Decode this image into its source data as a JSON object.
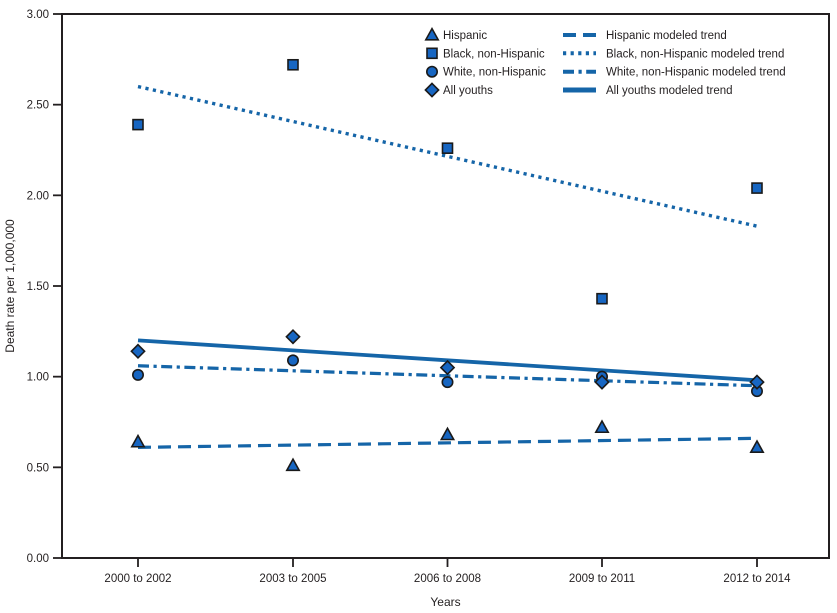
{
  "chart_data": {
    "type": "scatter",
    "title": "",
    "xlabel": "Years",
    "ylabel": "Death rate per 1,000,000",
    "ylim": [
      0.0,
      3.0
    ],
    "ytick_step": 0.5,
    "ytick_labels": [
      "0.00",
      "0.50",
      "1.00",
      "1.50",
      "2.00",
      "2.50",
      "3.00"
    ],
    "categories": [
      "2000 to 2002",
      "2003 to 2005",
      "2006 to 2008",
      "2009 to 2011",
      "2012 to 2014"
    ],
    "grid": false,
    "legend_position": "top-right-inside",
    "series": [
      {
        "name": "Hispanic",
        "marker": "triangle",
        "values": [
          0.64,
          0.51,
          0.68,
          0.72,
          0.61
        ]
      },
      {
        "name": "Black, non-Hispanic",
        "marker": "square",
        "values": [
          2.39,
          2.72,
          2.26,
          1.43,
          2.04
        ]
      },
      {
        "name": "White, non-Hispanic",
        "marker": "circle",
        "values": [
          1.01,
          1.09,
          0.97,
          1.0,
          0.92
        ]
      },
      {
        "name": "All youths",
        "marker": "diamond",
        "values": [
          1.14,
          1.22,
          1.05,
          0.97,
          0.97
        ]
      }
    ],
    "trend_lines": [
      {
        "name": "Hispanic modeled trend",
        "style": "dashed",
        "start_value": 0.61,
        "end_value": 0.66
      },
      {
        "name": "Black, non-Hispanic modeled trend",
        "style": "dotted",
        "start_value": 2.6,
        "end_value": 1.83
      },
      {
        "name": "White, non-Hispanic modeled trend",
        "style": "dashdot",
        "start_value": 1.06,
        "end_value": 0.95
      },
      {
        "name": "All youths modeled trend",
        "style": "solid",
        "start_value": 1.2,
        "end_value": 0.98
      }
    ],
    "colors": {
      "marker_fill": "#1766c2",
      "marker_stroke": "#1a1a1a",
      "trend_line": "#1565a8",
      "axis": "#231f20",
      "text": "#231f20",
      "background": "#ffffff"
    }
  }
}
